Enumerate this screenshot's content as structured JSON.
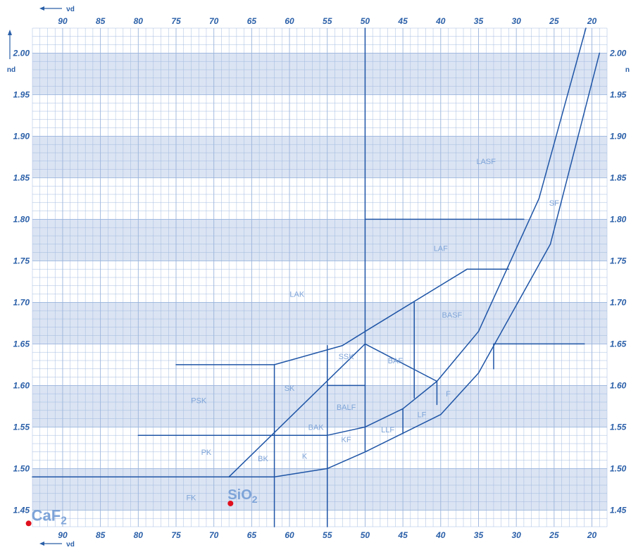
{
  "chart_data": {
    "type": "line",
    "title": "",
    "xlabel": "νd",
    "ylabel": "nd",
    "x_direction": "reversed",
    "xlim": [
      94,
      18
    ],
    "ylim": [
      1.43,
      2.03
    ],
    "x_ticks": [
      90,
      85,
      80,
      75,
      70,
      65,
      60,
      55,
      50,
      45,
      40,
      35,
      30,
      25,
      20
    ],
    "y_ticks": [
      2.0,
      1.95,
      1.9,
      1.85,
      1.8,
      1.75,
      1.7,
      1.65,
      1.6,
      1.55,
      1.5,
      1.45
    ],
    "grid": true,
    "grid_minor_x": 1,
    "grid_minor_y": 0.01,
    "bands": [
      [
        1.45,
        1.5
      ],
      [
        1.55,
        1.6
      ],
      [
        1.65,
        1.7
      ],
      [
        1.75,
        1.8
      ],
      [
        1.85,
        1.9
      ],
      [
        1.95,
        2.0
      ]
    ],
    "colors": {
      "line": "#1f55a6",
      "grid": "#9ab4dc",
      "band": "#dbe4f3",
      "tick": "#2a5fa8",
      "label": "#7ea4d8",
      "point": "#e0101e"
    },
    "boundaries": [
      [
        [
          94,
          1.49
        ],
        [
          62,
          1.49
        ]
      ],
      [
        [
          62,
          1.49
        ],
        [
          55,
          1.5
        ]
      ],
      [
        [
          55,
          1.5
        ],
        [
          50,
          1.52
        ]
      ],
      [
        [
          50,
          1.52
        ],
        [
          40,
          1.565
        ]
      ],
      [
        [
          40,
          1.565
        ],
        [
          35,
          1.615
        ]
      ],
      [
        [
          35,
          1.615
        ],
        [
          25.5,
          1.77
        ]
      ],
      [
        [
          25.5,
          1.77
        ],
        [
          19,
          2.0
        ]
      ],
      [
        [
          68,
          1.49
        ],
        [
          50,
          1.65
        ]
      ],
      [
        [
          50,
          1.65
        ],
        [
          40.5,
          1.605
        ]
      ],
      [
        [
          40.5,
          1.605
        ],
        [
          35,
          1.665
        ]
      ],
      [
        [
          35,
          1.665
        ],
        [
          27,
          1.825
        ]
      ],
      [
        [
          27,
          1.825
        ],
        [
          20.8,
          2.03
        ]
      ],
      [
        [
          62,
          1.43
        ],
        [
          62,
          1.625
        ]
      ],
      [
        [
          75,
          1.625
        ],
        [
          62,
          1.625
        ]
      ],
      [
        [
          62,
          1.625
        ],
        [
          53,
          1.648
        ]
      ],
      [
        [
          53,
          1.648
        ],
        [
          50,
          1.665
        ]
      ],
      [
        [
          50,
          1.665
        ],
        [
          36.5,
          1.74
        ]
      ],
      [
        [
          36.5,
          1.74
        ],
        [
          31,
          1.74
        ]
      ],
      [
        [
          80,
          1.54
        ],
        [
          55,
          1.54
        ]
      ],
      [
        [
          55,
          1.43
        ],
        [
          55,
          1.648
        ]
      ],
      [
        [
          55,
          1.6
        ],
        [
          50,
          1.6
        ]
      ],
      [
        [
          55,
          1.54
        ],
        [
          50,
          1.55
        ]
      ],
      [
        [
          50,
          1.55
        ],
        [
          45,
          1.572
        ]
      ],
      [
        [
          45,
          1.572
        ],
        [
          40.5,
          1.605
        ]
      ],
      [
        [
          50,
          2.03
        ],
        [
          50,
          1.52
        ]
      ],
      [
        [
          50,
          1.8
        ],
        [
          29,
          1.8
        ]
      ],
      [
        [
          43.5,
          1.7
        ],
        [
          43.5,
          1.585
        ]
      ],
      [
        [
          45,
          1.542
        ],
        [
          45,
          1.572
        ]
      ],
      [
        [
          40.5,
          1.577
        ],
        [
          40.5,
          1.605
        ]
      ],
      [
        [
          33,
          1.62
        ],
        [
          33,
          1.65
        ]
      ],
      [
        [
          33,
          1.65
        ],
        [
          21,
          1.65
        ]
      ]
    ],
    "regions": [
      {
        "name": "FK",
        "x": 73,
        "y": 1.465
      },
      {
        "name": "PK",
        "x": 71,
        "y": 1.52
      },
      {
        "name": "PSK",
        "x": 72,
        "y": 1.582
      },
      {
        "name": "BK",
        "x": 63.5,
        "y": 1.512
      },
      {
        "name": "K",
        "x": 58,
        "y": 1.515
      },
      {
        "name": "SK",
        "x": 60,
        "y": 1.597
      },
      {
        "name": "BAK",
        "x": 56.5,
        "y": 1.55
      },
      {
        "name": "KF",
        "x": 52.5,
        "y": 1.535
      },
      {
        "name": "BALF",
        "x": 52.5,
        "y": 1.574
      },
      {
        "name": "SSK",
        "x": 52.5,
        "y": 1.635
      },
      {
        "name": "BAF",
        "x": 46,
        "y": 1.63
      },
      {
        "name": "LLF",
        "x": 47,
        "y": 1.547
      },
      {
        "name": "LF",
        "x": 42.5,
        "y": 1.565
      },
      {
        "name": "F",
        "x": 39,
        "y": 1.59
      },
      {
        "name": "BASF",
        "x": 38.5,
        "y": 1.685
      },
      {
        "name": "LAK",
        "x": 59,
        "y": 1.71
      },
      {
        "name": "LAF",
        "x": 40,
        "y": 1.765
      },
      {
        "name": "LASF",
        "x": 34,
        "y": 1.87
      },
      {
        "name": "SF",
        "x": 25,
        "y": 1.82
      }
    ],
    "points": [
      {
        "label": "CaF",
        "sub": "2",
        "x": 94.5,
        "y": 1.434
      },
      {
        "label": "SiO",
        "sub": "2",
        "x": 67.8,
        "y": 1.458
      }
    ]
  }
}
